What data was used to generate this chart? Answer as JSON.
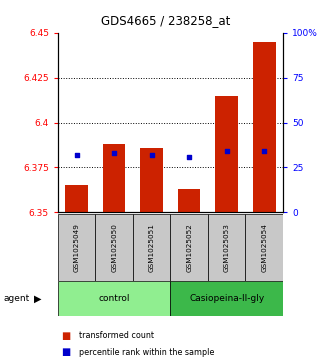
{
  "title": "GDS4665 / 238258_at",
  "samples": [
    "GSM1025049",
    "GSM1025050",
    "GSM1025051",
    "GSM1025052",
    "GSM1025053",
    "GSM1025054"
  ],
  "bar_bottom": 6.35,
  "red_values": [
    6.365,
    6.388,
    6.386,
    6.363,
    6.415,
    6.445
  ],
  "blue_values": [
    6.382,
    6.383,
    6.382,
    6.381,
    6.384,
    6.384
  ],
  "ylim_left": [
    6.35,
    6.45
  ],
  "ylim_right": [
    0,
    100
  ],
  "yticks_left": [
    6.35,
    6.375,
    6.4,
    6.425,
    6.45
  ],
  "yticks_right": [
    0,
    25,
    50,
    75,
    100
  ],
  "ytick_labels_right": [
    "0",
    "25",
    "50",
    "75",
    "100%"
  ],
  "grid_values": [
    6.375,
    6.4,
    6.425
  ],
  "bar_color": "#CC2200",
  "dot_color": "#0000CC",
  "legend_red": "transformed count",
  "legend_blue": "percentile rank within the sample",
  "bar_width": 0.6,
  "control_color": "#90EE90",
  "casio_color": "#3CB84A",
  "sample_bg": "#C8C8C8"
}
